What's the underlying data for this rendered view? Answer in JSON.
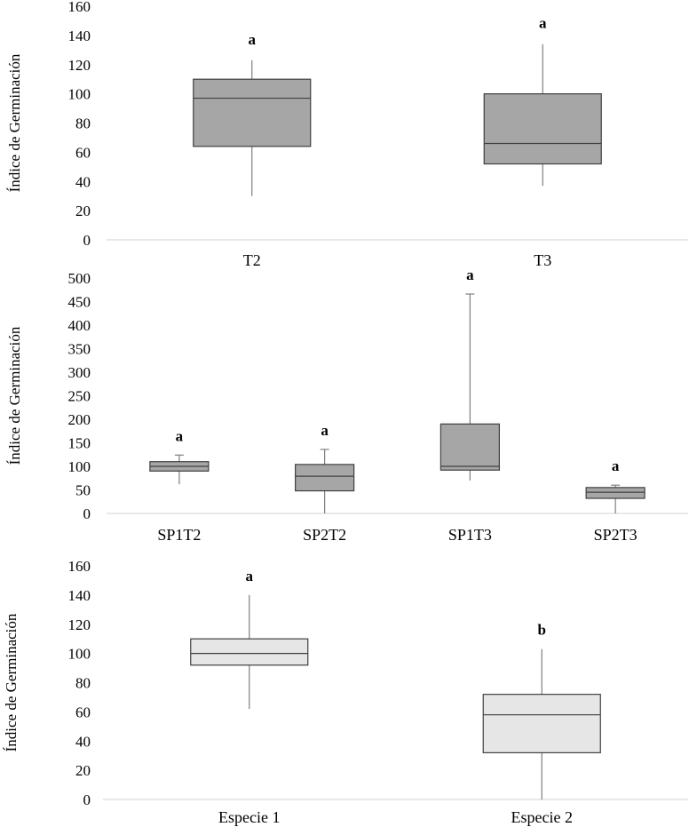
{
  "chart_data": [
    {
      "type": "box",
      "ylabel": "Índice de Germinación",
      "ylim": [
        0,
        160
      ],
      "yticks": [
        0,
        20,
        40,
        60,
        80,
        100,
        120,
        140,
        160
      ],
      "box_color": "#a6a6a6",
      "categories": [
        "T2",
        "T3"
      ],
      "boxes": [
        {
          "label": "T2",
          "min": 30,
          "q1": 64,
          "median": 97,
          "q3": 110,
          "max": 123,
          "letter": "a"
        },
        {
          "label": "T3",
          "min": 37,
          "q1": 52,
          "median": 66,
          "q3": 100,
          "max": 134,
          "letter": "a"
        }
      ]
    },
    {
      "type": "box",
      "ylabel": "Índice de Germinación",
      "ylim": [
        0,
        500
      ],
      "yticks": [
        0,
        50,
        100,
        150,
        200,
        250,
        300,
        350,
        400,
        450,
        500
      ],
      "box_color": "#a6a6a6",
      "categories": [
        "SP1T2",
        "SP2T2",
        "SP1T3",
        "SP2T3"
      ],
      "boxes": [
        {
          "label": "SP1T2",
          "min": 62,
          "q1": 90,
          "median": 100,
          "q3": 110,
          "max": 124,
          "letter": "a"
        },
        {
          "label": "SP2T2",
          "min": 0,
          "q1": 48,
          "median": 79,
          "q3": 104,
          "max": 136,
          "letter": "a"
        },
        {
          "label": "SP1T3",
          "min": 70,
          "q1": 92,
          "median": 100,
          "q3": 190,
          "max": 466,
          "letter": "a"
        },
        {
          "label": "SP2T3",
          "min": 0,
          "q1": 32,
          "median": 45,
          "q3": 55,
          "max": 60,
          "letter": "a"
        }
      ]
    },
    {
      "type": "box",
      "ylabel": "Índice de Germinación",
      "ylim": [
        0,
        160
      ],
      "yticks": [
        0,
        20,
        40,
        60,
        80,
        100,
        120,
        140,
        160
      ],
      "box_color": "#e6e6e6",
      "categories": [
        "Especie 1",
        "Especie 2"
      ],
      "boxes": [
        {
          "label": "Especie 1",
          "min": 62,
          "q1": 92,
          "median": 100,
          "q3": 110,
          "max": 140,
          "letter": "a"
        },
        {
          "label": "Especie 2",
          "min": 0,
          "q1": 32,
          "median": 58,
          "q3": 72,
          "max": 103,
          "letter": "b"
        }
      ]
    }
  ]
}
